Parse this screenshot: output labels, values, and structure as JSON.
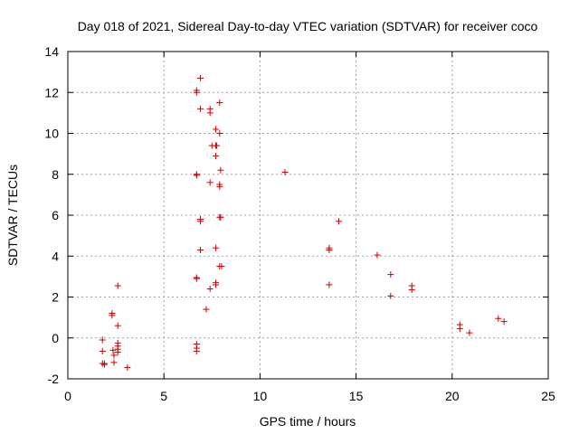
{
  "chart_data": {
    "type": "scatter",
    "title": "Day 018 of 2021, Sidereal Day-to-day VTEC variation (SDTVAR) for receiver coco",
    "xlabel": "GPS time / hours",
    "ylabel": "SDTVAR / TECUs",
    "xlim": [
      0,
      25
    ],
    "ylim": [
      -2,
      14
    ],
    "xticks": [
      "0",
      "5",
      "10",
      "15",
      "20",
      "25"
    ],
    "yticks": [
      "-2",
      "0",
      "2",
      "4",
      "6",
      "8",
      "10",
      "12",
      "14"
    ],
    "grid": true,
    "marker": "+",
    "color": "#cc0000",
    "series": [
      {
        "name": "SDTVAR",
        "points": [
          [
            1.8,
            -0.1
          ],
          [
            1.8,
            -0.65
          ],
          [
            1.8,
            -1.25
          ],
          [
            1.9,
            -1.3
          ],
          [
            1.9,
            -1.25
          ],
          [
            2.3,
            1.2
          ],
          [
            2.3,
            1.1
          ],
          [
            2.35,
            -0.6
          ],
          [
            2.4,
            -0.85
          ],
          [
            2.4,
            -1.2
          ],
          [
            2.6,
            2.55
          ],
          [
            2.6,
            0.6
          ],
          [
            2.6,
            -0.25
          ],
          [
            2.6,
            -0.4
          ],
          [
            2.6,
            -0.55
          ],
          [
            2.6,
            -0.7
          ],
          [
            3.1,
            -1.45
          ],
          [
            6.7,
            12.1
          ],
          [
            6.7,
            12.0
          ],
          [
            6.9,
            12.7
          ],
          [
            6.9,
            11.2
          ],
          [
            7.4,
            11.2
          ],
          [
            7.4,
            11.0
          ],
          [
            7.9,
            11.5
          ],
          [
            7.7,
            10.2
          ],
          [
            7.9,
            10.0
          ],
          [
            7.5,
            9.4
          ],
          [
            7.7,
            9.4
          ],
          [
            7.75,
            9.4
          ],
          [
            7.7,
            8.9
          ],
          [
            7.95,
            8.2
          ],
          [
            6.7,
            8.0
          ],
          [
            6.7,
            7.95
          ],
          [
            7.4,
            7.6
          ],
          [
            7.9,
            7.5
          ],
          [
            7.9,
            7.4
          ],
          [
            6.9,
            5.8
          ],
          [
            6.9,
            5.7
          ],
          [
            7.9,
            5.9
          ],
          [
            7.95,
            5.9
          ],
          [
            6.9,
            4.3
          ],
          [
            7.7,
            4.4
          ],
          [
            7.9,
            3.5
          ],
          [
            8.0,
            3.5
          ],
          [
            6.7,
            2.95
          ],
          [
            6.7,
            2.9
          ],
          [
            7.7,
            2.7
          ],
          [
            7.7,
            2.6
          ],
          [
            7.4,
            2.4
          ],
          [
            7.2,
            1.4
          ],
          [
            6.7,
            -0.3
          ],
          [
            6.7,
            -0.5
          ],
          [
            6.7,
            -0.65
          ],
          [
            11.3,
            8.1
          ],
          [
            14.1,
            5.7
          ],
          [
            13.6,
            4.4
          ],
          [
            13.6,
            4.3
          ],
          [
            13.6,
            2.6
          ],
          [
            16.1,
            4.05
          ],
          [
            16.8,
            3.1
          ],
          [
            16.8,
            2.05
          ],
          [
            17.9,
            2.55
          ],
          [
            17.9,
            2.35
          ],
          [
            20.4,
            0.65
          ],
          [
            20.4,
            0.45
          ],
          [
            20.9,
            0.25
          ],
          [
            22.4,
            0.95
          ],
          [
            22.7,
            0.8
          ]
        ]
      }
    ]
  }
}
